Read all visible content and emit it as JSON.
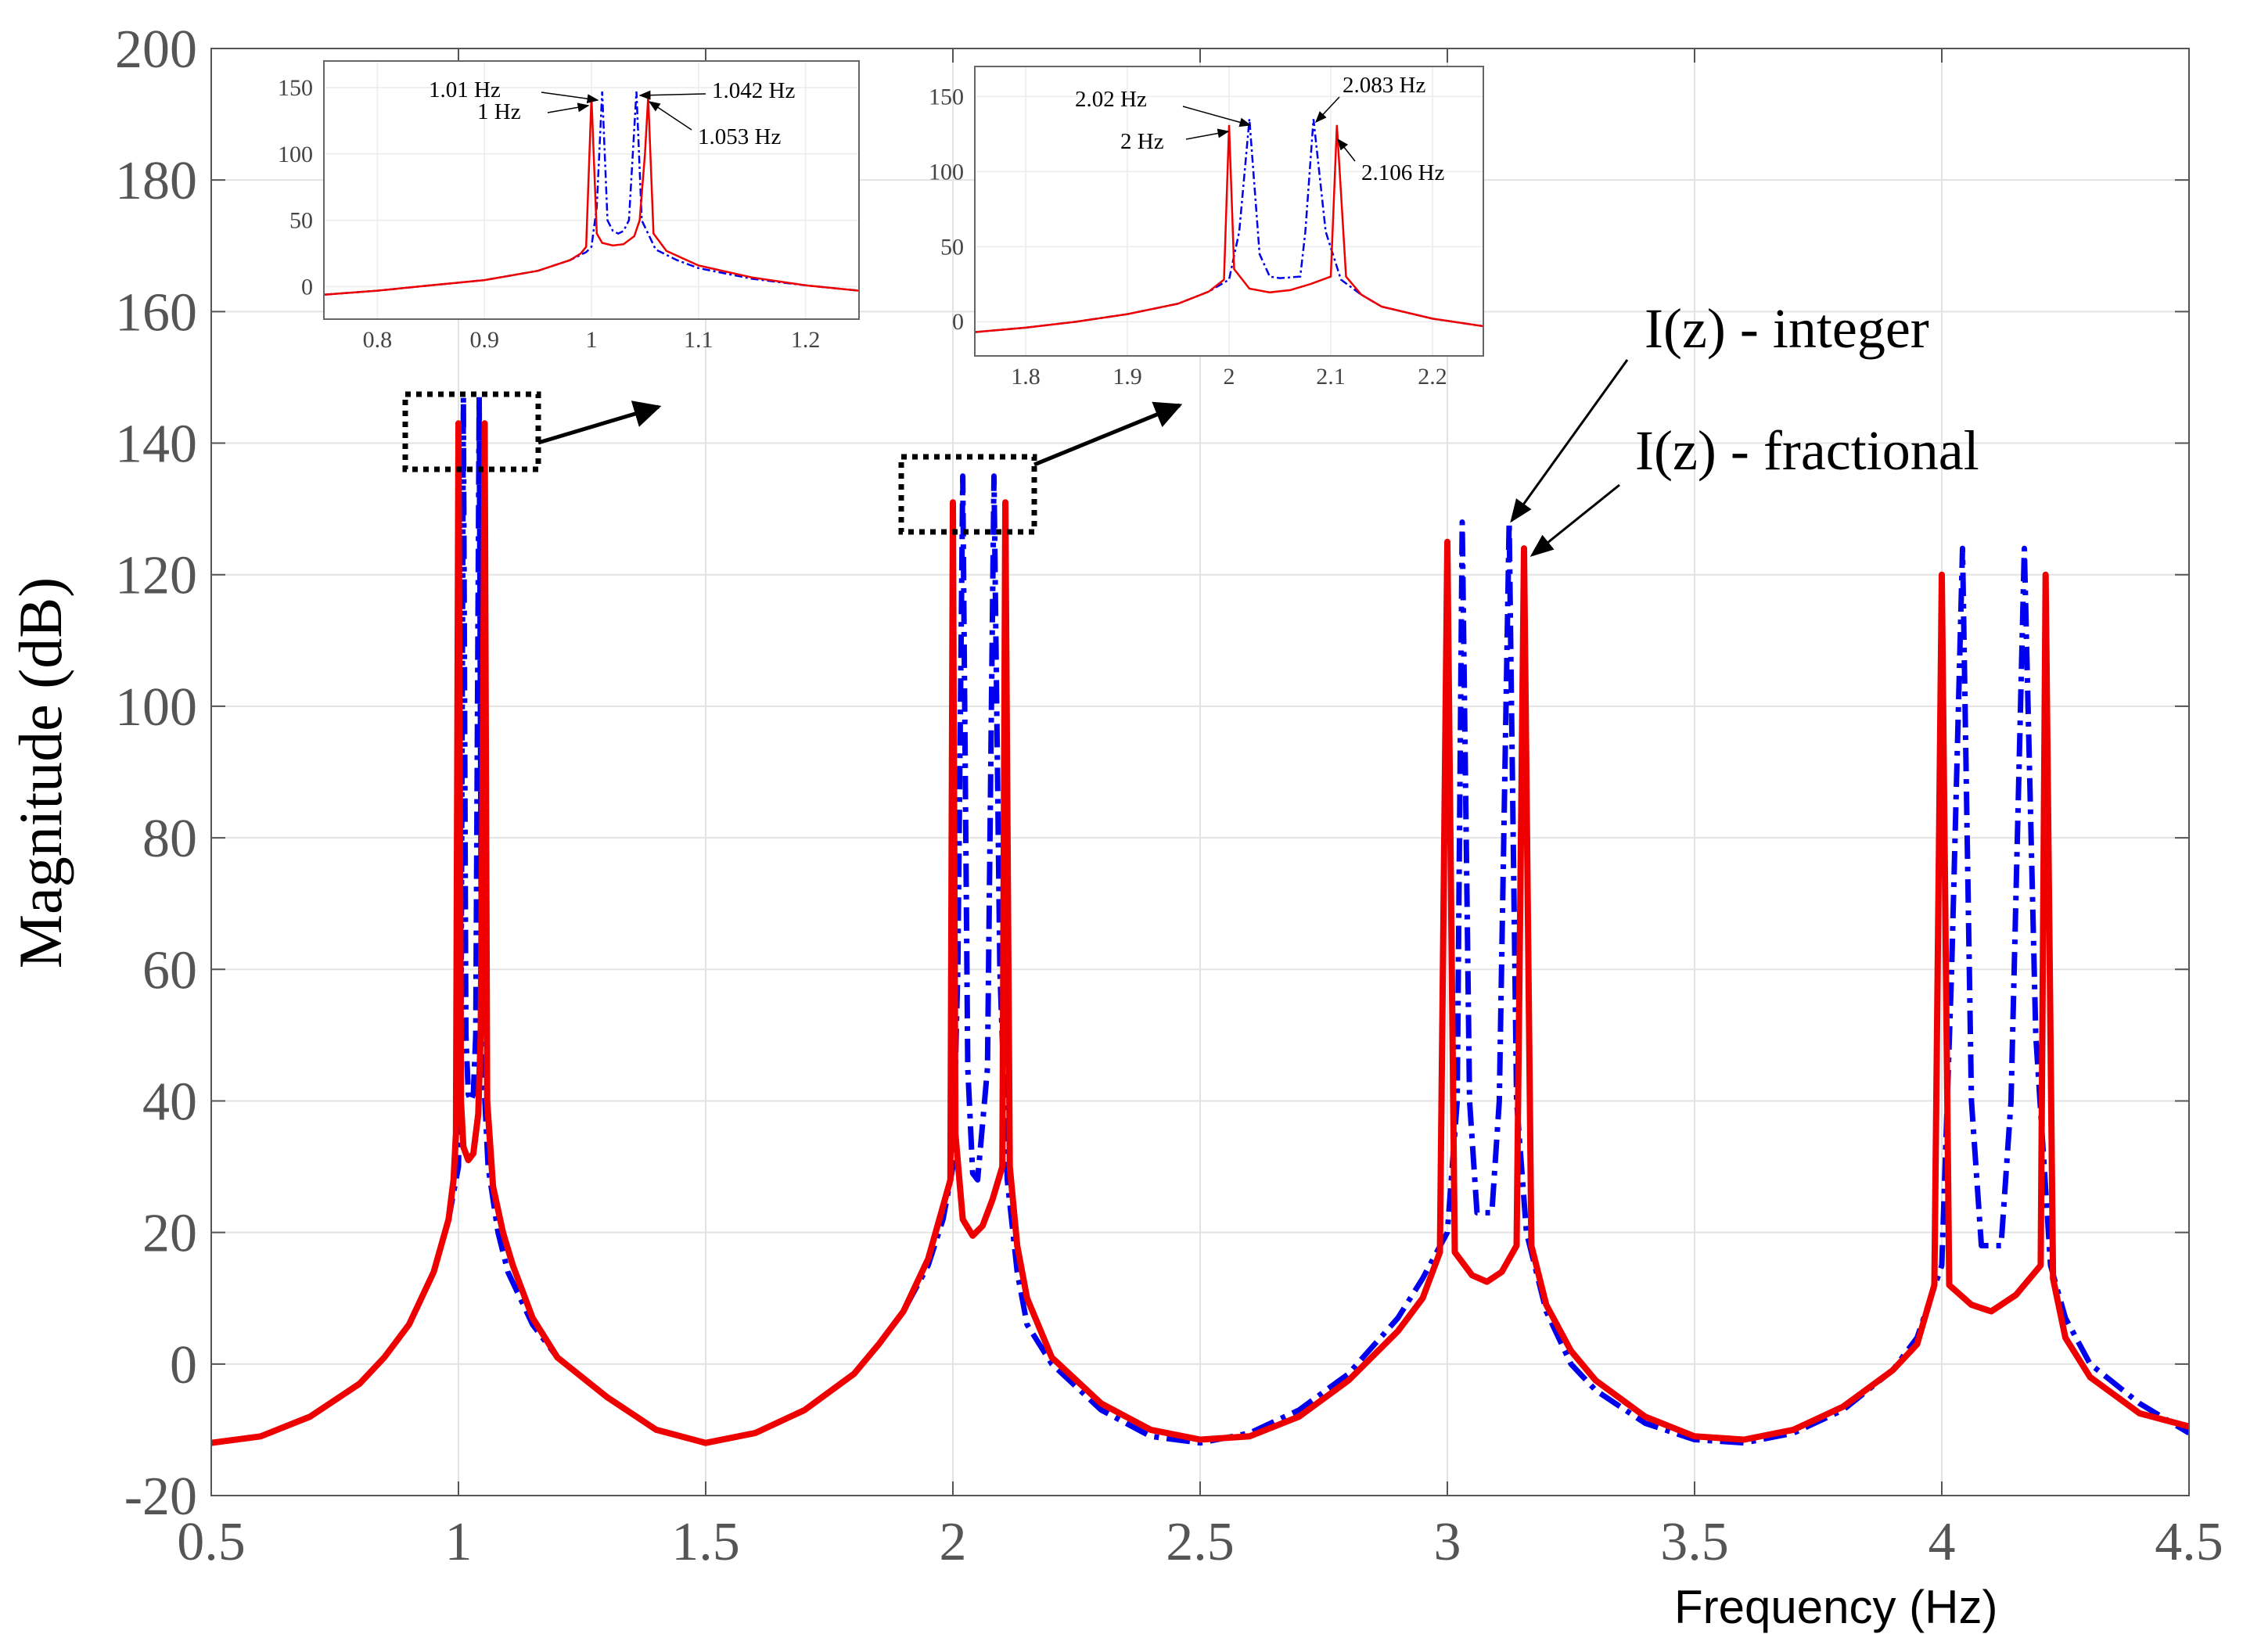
{
  "chart_data": {
    "type": "line",
    "xlabel": "Frequency  (Hz)",
    "ylabel": "Magnitude (dB)",
    "xlim": [
      0.5,
      4.5
    ],
    "ylim": [
      -20,
      200
    ],
    "xticks": [
      "0.5",
      "1",
      "1.5",
      "2",
      "2.5",
      "3",
      "3.5",
      "4",
      "4.5"
    ],
    "yticks": [
      "-20",
      "0",
      "20",
      "40",
      "60",
      "80",
      "100",
      "120",
      "140",
      "160",
      "180",
      "200"
    ],
    "grid": true,
    "series": [
      {
        "name": "I(z) - integer",
        "style": "dash-dot",
        "color": "#0000ee",
        "x": [
          0.5,
          0.6,
          0.7,
          0.8,
          0.85,
          0.9,
          0.95,
          0.98,
          1.0,
          1.005,
          1.01,
          1.015,
          1.02,
          1.025,
          1.03,
          1.035,
          1.042,
          1.047,
          1.06,
          1.08,
          1.1,
          1.15,
          1.2,
          1.3,
          1.4,
          1.5,
          1.6,
          1.7,
          1.8,
          1.85,
          1.9,
          1.95,
          1.98,
          2.0,
          2.01,
          2.02,
          2.03,
          2.04,
          2.05,
          2.07,
          2.075,
          2.083,
          2.095,
          2.11,
          2.13,
          2.15,
          2.2,
          2.3,
          2.4,
          2.5,
          2.6,
          2.7,
          2.8,
          2.9,
          2.95,
          3.0,
          3.02,
          3.03,
          3.045,
          3.06,
          3.09,
          3.105,
          3.125,
          3.14,
          3.16,
          3.2,
          3.25,
          3.3,
          3.4,
          3.5,
          3.6,
          3.7,
          3.8,
          3.9,
          3.95,
          4.0,
          4.02,
          4.042,
          4.06,
          4.08,
          4.12,
          4.14,
          4.167,
          4.19,
          4.22,
          4.25,
          4.3,
          4.4,
          4.5
        ],
        "y": [
          -12,
          -11,
          -8,
          -3,
          1,
          6,
          14,
          22,
          30,
          50,
          147,
          50,
          41,
          40,
          41,
          50,
          147,
          50,
          30,
          20,
          14,
          6,
          1,
          -5,
          -10,
          -12,
          -10.5,
          -7,
          -1.5,
          3,
          8,
          15,
          22,
          30,
          60,
          135,
          45,
          29,
          28,
          45,
          80,
          135,
          60,
          28,
          14,
          6,
          0,
          -7,
          -11,
          -12,
          -10.5,
          -7,
          -1.5,
          7,
          13,
          20,
          40,
          128,
          40,
          23,
          23,
          40,
          128,
          40,
          20,
          8,
          0,
          -4,
          -9,
          -11.5,
          -12,
          -10.5,
          -7,
          -1,
          4,
          15,
          60,
          124,
          40,
          18,
          18,
          40,
          124,
          50,
          15,
          7,
          0,
          -6,
          -10.5
        ]
      },
      {
        "name": "I(z) - fractional",
        "style": "solid",
        "color": "#ee0000",
        "x": [
          0.5,
          0.6,
          0.7,
          0.8,
          0.85,
          0.9,
          0.95,
          0.98,
          0.99,
          0.995,
          1.0,
          1.005,
          1.01,
          1.02,
          1.03,
          1.04,
          1.045,
          1.05,
          1.053,
          1.058,
          1.07,
          1.09,
          1.11,
          1.15,
          1.2,
          1.3,
          1.4,
          1.5,
          1.6,
          1.7,
          1.8,
          1.85,
          1.9,
          1.95,
          1.98,
          1.995,
          2.0,
          2.005,
          2.02,
          2.04,
          2.06,
          2.08,
          2.1,
          2.106,
          2.115,
          2.13,
          2.15,
          2.2,
          2.3,
          2.4,
          2.5,
          2.6,
          2.7,
          2.8,
          2.9,
          2.95,
          2.985,
          3.0,
          3.015,
          3.05,
          3.08,
          3.11,
          3.14,
          3.155,
          3.17,
          3.2,
          3.25,
          3.3,
          3.4,
          3.5,
          3.6,
          3.7,
          3.8,
          3.9,
          3.95,
          3.985,
          4.0,
          4.015,
          4.06,
          4.1,
          4.15,
          4.2,
          4.21,
          4.225,
          4.25,
          4.3,
          4.4,
          4.5
        ],
        "y": [
          -12,
          -11,
          -8,
          -3,
          1,
          6,
          14,
          22,
          28,
          35,
          143,
          40,
          33,
          31,
          32,
          38,
          50,
          100,
          143,
          40,
          27,
          20,
          15,
          7,
          1,
          -5,
          -10,
          -12,
          -10.5,
          -7,
          -1.5,
          3,
          8,
          16,
          24,
          28,
          131,
          35,
          22,
          19.5,
          21,
          25,
          30,
          131,
          30,
          18,
          10,
          1,
          -6,
          -10,
          -11.5,
          -11,
          -8,
          -2.5,
          5,
          10,
          17,
          125,
          17,
          13.5,
          12.5,
          14,
          18,
          124,
          18,
          9,
          2,
          -2.5,
          -8,
          -11,
          -11.5,
          -10,
          -6.5,
          -1,
          3,
          12,
          120,
          12,
          9,
          8,
          10.5,
          15,
          120,
          13,
          4,
          -2,
          -7.5,
          -9.5
        ]
      }
    ],
    "annotations": [
      "I(z) - integer",
      "I(z) - fractional"
    ],
    "insets": [
      {
        "xlim": [
          0.75,
          1.25
        ],
        "ylim": [
          -15,
          170
        ],
        "xticks": [
          "0.8",
          "0.9",
          "1",
          "1.1",
          "1.2"
        ],
        "yticks": [
          "0",
          "50",
          "100",
          "150"
        ],
        "labels": [
          "1.01 Hz",
          "1 Hz",
          "1.042 Hz",
          "1.053 Hz"
        ],
        "series": [
          {
            "name": "I(z) - integer",
            "x": [
              0.75,
              0.8,
              0.85,
              0.9,
              0.95,
              0.98,
              0.995,
              1.0,
              1.005,
              1.01,
              1.015,
              1.02,
              1.025,
              1.03,
              1.035,
              1.042,
              1.047,
              1.06,
              1.08,
              1.1,
              1.15,
              1.2,
              1.25
            ],
            "y": [
              -6,
              -3,
              1,
              5,
              12,
              20,
              26,
              30,
              60,
              147,
              50,
              42,
              40,
              42,
              50,
              147,
              50,
              28,
              20,
              14,
              6,
              1,
              -3
            ]
          },
          {
            "name": "I(z) - fractional",
            "x": [
              0.75,
              0.8,
              0.85,
              0.9,
              0.95,
              0.98,
              0.99,
              0.995,
              1.0,
              1.005,
              1.01,
              1.02,
              1.03,
              1.04,
              1.045,
              1.05,
              1.053,
              1.058,
              1.07,
              1.1,
              1.15,
              1.2,
              1.25
            ],
            "y": [
              -6,
              -3,
              1,
              5,
              12,
              20,
              25,
              30,
              143,
              40,
              33,
              31,
              32,
              38,
              50,
              100,
              143,
              40,
              27,
              16,
              7,
              1,
              -3
            ]
          }
        ]
      },
      {
        "xlim": [
          1.75,
          2.25
        ],
        "ylim": [
          -15,
          170
        ],
        "xticks": [
          "1.8",
          "1.9",
          "2",
          "2.1",
          "2.2"
        ],
        "yticks": [
          "0",
          "50",
          "100",
          "150"
        ],
        "labels": [
          "2.02 Hz",
          "2 Hz",
          "2.083 Hz",
          "2.106 Hz"
        ],
        "series": [
          {
            "name": "I(z) - integer",
            "x": [
              1.75,
              1.8,
              1.85,
              1.9,
              1.95,
              1.98,
              2.0,
              2.01,
              2.02,
              2.03,
              2.04,
              2.05,
              2.07,
              2.075,
              2.083,
              2.095,
              2.11,
              2.13,
              2.15,
              2.2,
              2.25
            ],
            "y": [
              -7,
              -4,
              0,
              5,
              12,
              20,
              28,
              60,
              135,
              45,
              30,
              29,
              30,
              60,
              135,
              60,
              28,
              18,
              10,
              2,
              -3
            ]
          },
          {
            "name": "I(z) - fractional",
            "x": [
              1.75,
              1.8,
              1.85,
              1.9,
              1.95,
              1.98,
              1.995,
              2.0,
              2.005,
              2.02,
              2.04,
              2.06,
              2.08,
              2.1,
              2.106,
              2.115,
              2.13,
              2.15,
              2.2,
              2.25
            ],
            "y": [
              -7,
              -4,
              0,
              5,
              12,
              20,
              28,
              131,
              35,
              22,
              19.5,
              21,
              25,
              30,
              131,
              30,
              18,
              10,
              2,
              -3
            ]
          }
        ]
      }
    ]
  }
}
